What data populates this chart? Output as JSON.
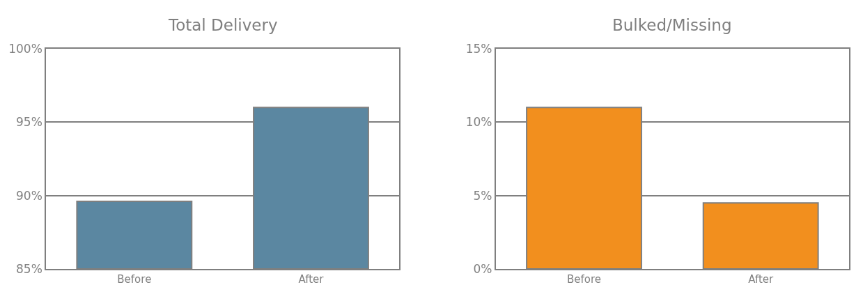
{
  "chart_data": [
    {
      "type": "bar",
      "title": "Total Delivery",
      "categories": [
        "Before",
        "After"
      ],
      "values": [
        89.6,
        96.0
      ],
      "color": "#5b87a1",
      "ylim": [
        85,
        100
      ],
      "yticks": [
        {
          "value": 85,
          "label": "85%"
        },
        {
          "value": 90,
          "label": "90%"
        },
        {
          "value": 95,
          "label": "95%"
        },
        {
          "value": 100,
          "label": "100%"
        }
      ],
      "grid": "y"
    },
    {
      "type": "bar",
      "title": "Bulked/Missing",
      "categories": [
        "Before",
        "After"
      ],
      "values": [
        11.0,
        4.5
      ],
      "color": "#f28f1e",
      "ylim": [
        0,
        15
      ],
      "yticks": [
        {
          "value": 0,
          "label": "0%"
        },
        {
          "value": 5,
          "label": "5%"
        },
        {
          "value": 10,
          "label": "10%"
        },
        {
          "value": 15,
          "label": "15%"
        }
      ],
      "grid": "y"
    }
  ]
}
